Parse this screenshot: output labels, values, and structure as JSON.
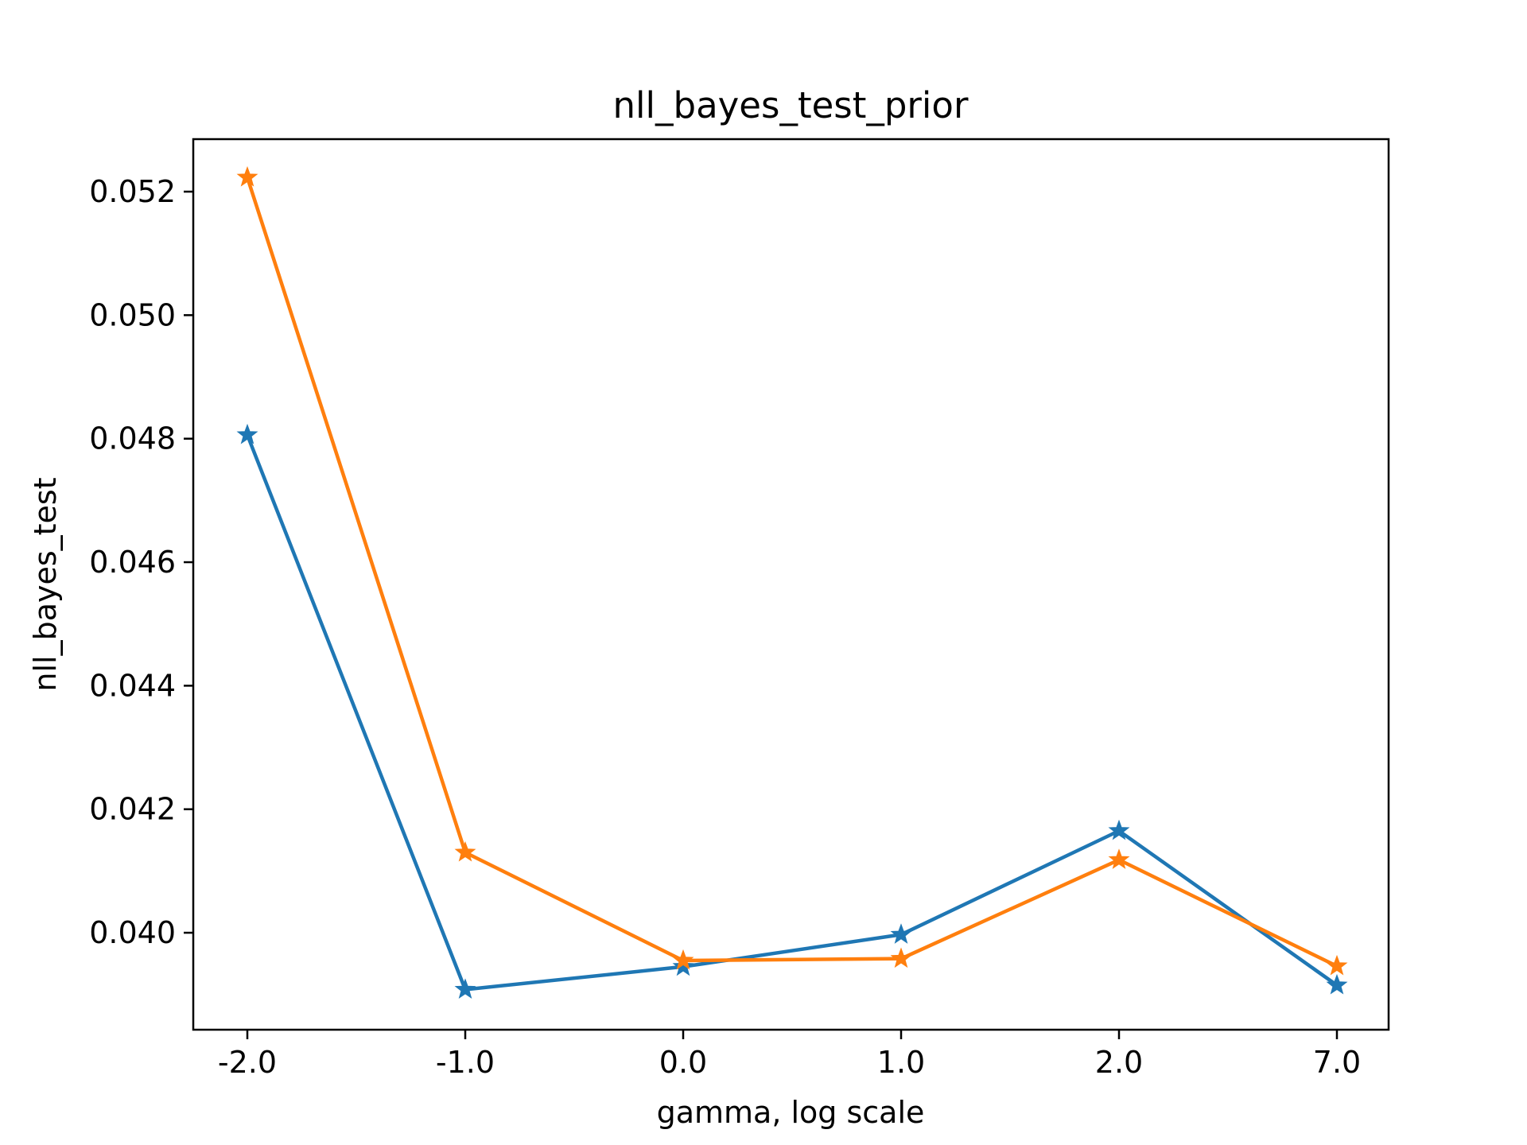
{
  "chart_data": {
    "type": "line",
    "title": "nll_bayes_test_prior",
    "xlabel": "gamma, log scale",
    "ylabel": "nll_bayes_test",
    "categories": [
      "-2.0",
      "-1.0",
      "0.0",
      "1.0",
      "2.0",
      "7.0"
    ],
    "ylim": [
      0.03843,
      0.05285
    ],
    "yticks": [
      "0.040",
      "0.042",
      "0.044",
      "0.046",
      "0.048",
      "0.050",
      "0.052"
    ],
    "ytick_values": [
      0.04,
      0.042,
      0.044,
      0.046,
      0.048,
      0.05,
      0.052
    ],
    "grid": false,
    "marker": "star",
    "series": [
      {
        "color": "#1f77b4",
        "values": [
          0.04806,
          0.03908,
          0.03945,
          0.03997,
          0.04165,
          0.03915
        ]
      },
      {
        "color": "#ff7f0e",
        "values": [
          0.05223,
          0.0413,
          0.03955,
          0.03958,
          0.04118,
          0.03946
        ]
      }
    ]
  }
}
